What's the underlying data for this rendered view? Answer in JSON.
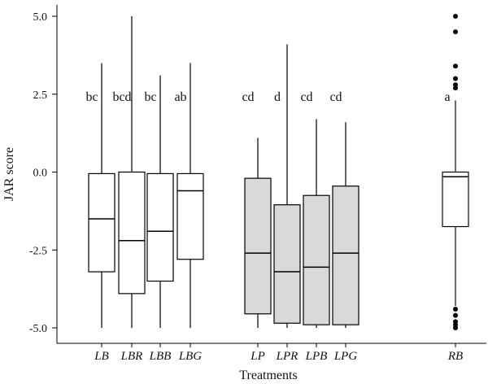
{
  "chart_data": {
    "type": "boxplot",
    "xlabel": "Treatments",
    "ylabel": "JAR score",
    "ylim": [
      -5.4,
      5.4
    ],
    "yticks": [
      {
        "value": 5.0,
        "label": "5.0"
      },
      {
        "value": 2.5,
        "label": "2.5"
      },
      {
        "value": 0.0,
        "label": "0.0"
      },
      {
        "value": -2.5,
        "label": "-2.5"
      },
      {
        "value": -5.0,
        "label": "-5.0"
      }
    ],
    "colors": {
      "light": "#ffffff",
      "grey": "#d9d9d9",
      "stroke": "#000000"
    },
    "groups": [
      {
        "category": "LB",
        "letter": "bc",
        "fill": "light",
        "min": -5.0,
        "q1": -3.2,
        "median": -1.5,
        "q3": -0.05,
        "max": 3.5,
        "outliers": []
      },
      {
        "category": "LBR",
        "letter": "bcd",
        "fill": "light",
        "min": -5.0,
        "q1": -3.9,
        "median": -2.2,
        "q3": 0.0,
        "max": 5.0,
        "outliers": []
      },
      {
        "category": "LBB",
        "letter": "bc",
        "fill": "light",
        "min": -5.0,
        "q1": -3.5,
        "median": -1.9,
        "q3": -0.05,
        "max": 3.1,
        "outliers": []
      },
      {
        "category": "LBG",
        "letter": "ab",
        "fill": "light",
        "min": -5.0,
        "q1": -2.8,
        "median": -0.6,
        "q3": -0.05,
        "max": 3.5,
        "outliers": []
      },
      {
        "category": "LP",
        "letter": "cd",
        "fill": "grey",
        "min": -5.0,
        "q1": -4.55,
        "median": -2.6,
        "q3": -0.2,
        "max": 1.1,
        "outliers": []
      },
      {
        "category": "LPR",
        "letter": "d",
        "fill": "grey",
        "min": -5.0,
        "q1": -4.85,
        "median": -3.2,
        "q3": -1.05,
        "max": 4.1,
        "outliers": []
      },
      {
        "category": "LPB",
        "letter": "cd",
        "fill": "grey",
        "min": -5.0,
        "q1": -4.9,
        "median": -3.05,
        "q3": -0.75,
        "max": 1.7,
        "outliers": []
      },
      {
        "category": "LPG",
        "letter": "cd",
        "fill": "grey",
        "min": -5.0,
        "q1": -4.9,
        "median": -2.6,
        "q3": -0.45,
        "max": 1.6,
        "outliers": []
      },
      {
        "category": "RB",
        "letter": "a",
        "fill": "light",
        "min": -4.3,
        "q1": -1.75,
        "median": -0.15,
        "q3": 0.0,
        "max": 2.3,
        "outliers": [
          5.0,
          4.5,
          3.4,
          3.0,
          2.8,
          2.7,
          -4.4,
          -4.6,
          -4.8,
          -4.9,
          -5.0
        ]
      }
    ]
  }
}
